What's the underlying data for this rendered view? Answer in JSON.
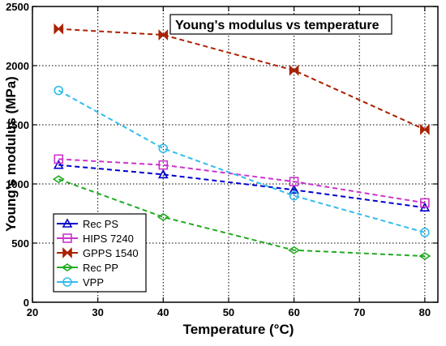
{
  "chart_data": {
    "type": "line",
    "title": "Young's modulus vs temperature",
    "xlabel": "Temperature (°C)",
    "ylabel": "Young's modulus (MPa)",
    "xlim": [
      20,
      82
    ],
    "ylim": [
      0,
      2500
    ],
    "xticks": [
      20,
      30,
      40,
      50,
      60,
      70,
      80
    ],
    "yticks": [
      0,
      500,
      1000,
      1500,
      2000,
      2500
    ],
    "grid": true,
    "legend_position": "bottom-left",
    "x": [
      24,
      40,
      60,
      80
    ],
    "series": [
      {
        "name": "Rec PS",
        "values": [
          1160,
          1080,
          950,
          800
        ],
        "color": "#0000cc",
        "marker": "triangle"
      },
      {
        "name": "HIPS 7240",
        "values": [
          1210,
          1160,
          1020,
          840
        ],
        "color": "#cc33cc",
        "marker": "square"
      },
      {
        "name": "GPPS 1540",
        "values": [
          2310,
          2260,
          1960,
          1460
        ],
        "color": "#aa2200",
        "marker": "bowtie"
      },
      {
        "name": "Rec PP",
        "values": [
          1040,
          720,
          440,
          390
        ],
        "color": "#22aa22",
        "marker": "diamond"
      },
      {
        "name": "VPP",
        "values": [
          1790,
          1300,
          900,
          590
        ],
        "color": "#33bbee",
        "marker": "circle"
      }
    ]
  }
}
